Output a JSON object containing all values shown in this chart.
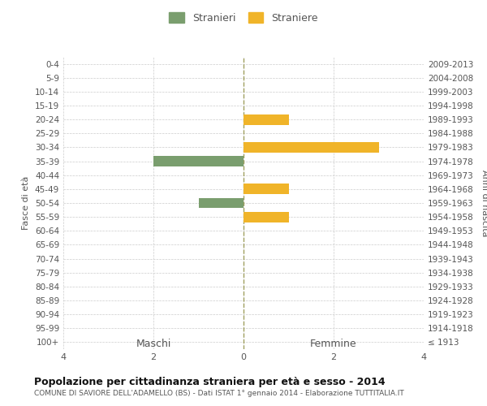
{
  "age_groups": [
    "0-4",
    "5-9",
    "10-14",
    "15-19",
    "20-24",
    "25-29",
    "30-34",
    "35-39",
    "40-44",
    "45-49",
    "50-54",
    "55-59",
    "60-64",
    "65-69",
    "70-74",
    "75-79",
    "80-84",
    "85-89",
    "90-94",
    "95-99",
    "100+"
  ],
  "birth_years": [
    "2009-2013",
    "2004-2008",
    "1999-2003",
    "1994-1998",
    "1989-1993",
    "1984-1988",
    "1979-1983",
    "1974-1978",
    "1969-1973",
    "1964-1968",
    "1959-1963",
    "1954-1958",
    "1949-1953",
    "1944-1948",
    "1939-1943",
    "1934-1938",
    "1929-1933",
    "1924-1928",
    "1919-1923",
    "1914-1918",
    "≤ 1913"
  ],
  "males": [
    0,
    0,
    0,
    0,
    0,
    0,
    0,
    -2,
    0,
    0,
    -1,
    0,
    0,
    0,
    0,
    0,
    0,
    0,
    0,
    0,
    0
  ],
  "females": [
    0,
    0,
    0,
    0,
    1,
    0,
    3,
    0,
    0,
    1,
    0,
    1,
    0,
    0,
    0,
    0,
    0,
    0,
    0,
    0,
    0
  ],
  "male_color": "#7a9e6e",
  "female_color": "#f0b429",
  "xlim": [
    -4,
    4
  ],
  "title": "Popolazione per cittadinanza straniera per età e sesso - 2014",
  "subtitle": "COMUNE DI SAVIORE DELL'ADAMELLO (BS) - Dati ISTAT 1° gennaio 2014 - Elaborazione TUTTITALIA.IT",
  "ylabel_left": "Fasce di età",
  "ylabel_right": "Anni di nascita",
  "legend_male": "Stranieri",
  "legend_female": "Straniere",
  "maschi_label": "Maschi",
  "femmine_label": "Femmine",
  "bg_color": "#ffffff",
  "grid_color": "#cccccc",
  "bar_height": 0.75
}
